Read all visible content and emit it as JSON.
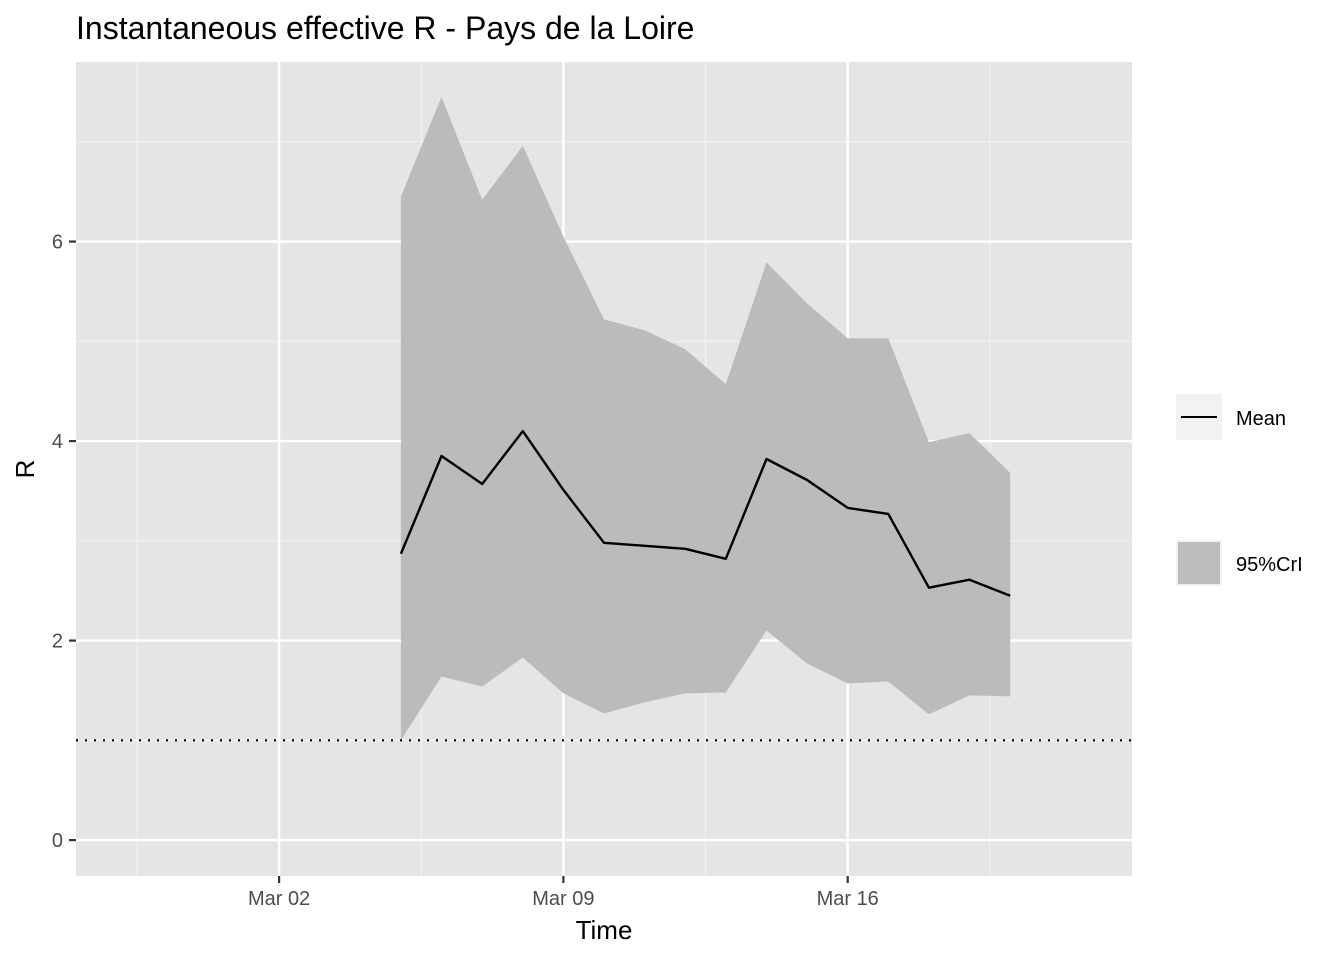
{
  "chart_data": {
    "type": "line",
    "title": "Instantaneous effective R -  Pays de la Loire",
    "xlabel": "Time",
    "ylabel": "R",
    "x_ticks": [
      "Mar 02",
      "Mar 09",
      "Mar 16"
    ],
    "y_ticks": [
      "0",
      "2",
      "4",
      "6"
    ],
    "ylim": [
      -0.36,
      7.8
    ],
    "xlim": [
      "2020-02-26",
      "2020-03-23"
    ],
    "reference_line": 1,
    "grid": true,
    "legend_position": "right",
    "series": [
      {
        "name": "Mean",
        "kind": "line",
        "color": "#000000",
        "x": [
          "2020-03-05",
          "2020-03-06",
          "2020-03-07",
          "2020-03-08",
          "2020-03-09",
          "2020-03-10",
          "2020-03-11",
          "2020-03-12",
          "2020-03-13",
          "2020-03-14",
          "2020-03-15",
          "2020-03-16",
          "2020-03-17",
          "2020-03-18",
          "2020-03-19",
          "2020-03-20"
        ],
        "y": [
          2.87,
          3.85,
          3.57,
          4.1,
          3.51,
          2.98,
          2.95,
          2.92,
          2.82,
          3.82,
          3.61,
          3.33,
          3.27,
          2.53,
          2.61,
          2.45
        ]
      },
      {
        "name": "95%CrI",
        "kind": "ribbon",
        "color": "#bbbbbb",
        "x": [
          "2020-03-05",
          "2020-03-06",
          "2020-03-07",
          "2020-03-08",
          "2020-03-09",
          "2020-03-10",
          "2020-03-11",
          "2020-03-12",
          "2020-03-13",
          "2020-03-14",
          "2020-03-15",
          "2020-03-16",
          "2020-03-17",
          "2020-03-18",
          "2020-03-19",
          "2020-03-20"
        ],
        "lower": [
          1.0,
          1.64,
          1.54,
          1.83,
          1.47,
          1.27,
          1.38,
          1.47,
          1.48,
          2.1,
          1.77,
          1.57,
          1.59,
          1.26,
          1.45,
          1.44
        ],
        "upper": [
          6.45,
          7.45,
          6.42,
          6.96,
          6.05,
          5.22,
          5.11,
          4.92,
          4.57,
          5.79,
          5.38,
          5.03,
          5.03,
          3.99,
          4.08,
          3.68
        ]
      }
    ]
  }
}
